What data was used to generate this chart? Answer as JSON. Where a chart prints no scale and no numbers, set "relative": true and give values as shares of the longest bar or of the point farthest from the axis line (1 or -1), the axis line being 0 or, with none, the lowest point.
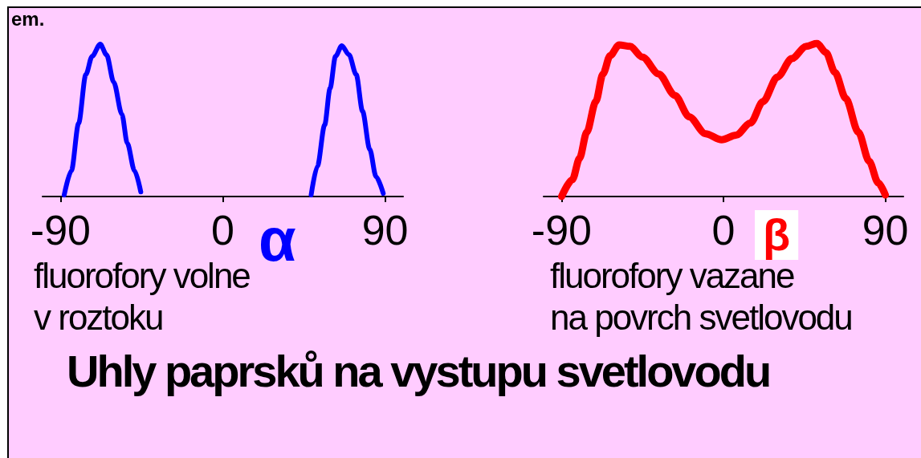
{
  "chart_data": [
    {
      "type": "line",
      "title": "Uhly paprsků na vystupu svetlovodu",
      "xlabel": "α",
      "relative": true,
      "xlim": [
        -100,
        100
      ],
      "xticks": [
        -90,
        0,
        90
      ],
      "marker": "none",
      "line_style": "solid",
      "annotations": [
        "em.",
        "fluorofory volne\nv roztoku"
      ],
      "series": [
        {
          "color": "#0000ff",
          "x": [
            -88,
            -84,
            -80,
            -76,
            -72.5,
            -68,
            -64.5,
            -60.5,
            -56,
            -53,
            -49,
            -45.5,
            0,
            49,
            52.5,
            56.5,
            59.5,
            62.5,
            66,
            70,
            74,
            77.5,
            81.5,
            85,
            89
          ],
          "values": [
            0.01,
            0.17,
            0.48,
            0.8,
            0.92,
            1,
            0.93,
            0.75,
            0.54,
            0.35,
            0.17,
            0.03,
            null,
            0.01,
            0.2,
            0.47,
            0.71,
            0.92,
            0.99,
            0.93,
            0.8,
            0.56,
            0.31,
            0.13,
            0.02
          ]
        }
      ]
    },
    {
      "type": "line",
      "xlabel": "β",
      "relative": true,
      "xlim": [
        -100,
        100
      ],
      "xticks": [
        -90,
        0,
        90
      ],
      "marker": "none",
      "line_style": "solid",
      "annotations": [
        "fluorofory vazane\nna povrch svetlovodu"
      ],
      "series": [
        {
          "color": "#ff0000",
          "x": [
            -90,
            -84,
            -80,
            -76,
            -71,
            -67,
            -63,
            -58,
            -52,
            -45,
            -36,
            -27,
            -19,
            -10,
            -1,
            7,
            15,
            22,
            30,
            38,
            46,
            52,
            57,
            62,
            68,
            75,
            81,
            86,
            90
          ],
          "values": [
            0,
            0.11,
            0.25,
            0.42,
            0.62,
            0.8,
            0.92,
            0.99,
            0.98,
            0.91,
            0.8,
            0.66,
            0.52,
            0.41,
            0.37,
            0.4,
            0.48,
            0.62,
            0.78,
            0.9,
            0.98,
            1,
            0.94,
            0.81,
            0.64,
            0.42,
            0.23,
            0.09,
            0.01
          ]
        }
      ]
    }
  ]
}
